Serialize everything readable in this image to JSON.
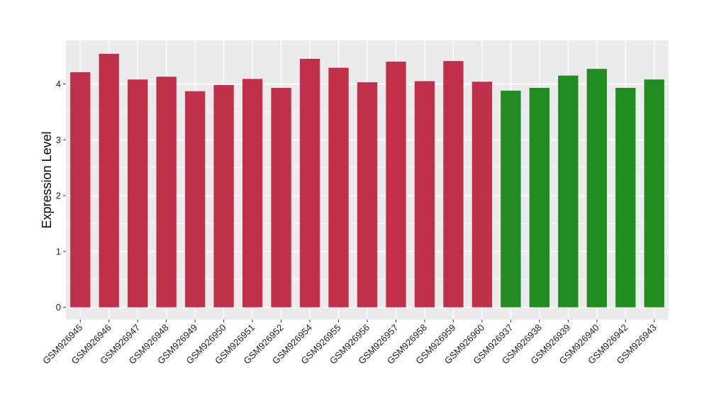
{
  "chart_data": {
    "type": "bar",
    "title": "",
    "xlabel": "",
    "ylabel": "Expression Level",
    "ylim": [
      -0.22,
      4.78
    ],
    "yticks": [
      0,
      1,
      2,
      3,
      4
    ],
    "grid": true,
    "background_color": "#EBEBEB",
    "grid_color": "#FFFFFF",
    "categories": [
      "GSM926945",
      "GSM926946",
      "GSM926947",
      "GSM926948",
      "GSM926949",
      "GSM926950",
      "GSM926951",
      "GSM926952",
      "GSM926954",
      "GSM926955",
      "GSM926956",
      "GSM926957",
      "GSM926958",
      "GSM926959",
      "GSM926960",
      "GSM926937",
      "GSM926938",
      "GSM926939",
      "GSM926940",
      "GSM926942",
      "GSM926943"
    ],
    "values": [
      4.21,
      4.54,
      4.08,
      4.13,
      3.87,
      3.98,
      4.09,
      3.93,
      4.45,
      4.29,
      4.03,
      4.4,
      4.05,
      4.41,
      4.04,
      3.88,
      3.93,
      4.15,
      4.27,
      3.93,
      4.08
    ],
    "bar_colors": [
      "#C1304A",
      "#C1304A",
      "#C1304A",
      "#C1304A",
      "#C1304A",
      "#C1304A",
      "#C1304A",
      "#C1304A",
      "#C1304A",
      "#C1304A",
      "#C1304A",
      "#C1304A",
      "#C1304A",
      "#C1304A",
      "#C1304A",
      "#228B22",
      "#228B22",
      "#228B22",
      "#228B22",
      "#228B22",
      "#228B22"
    ]
  }
}
